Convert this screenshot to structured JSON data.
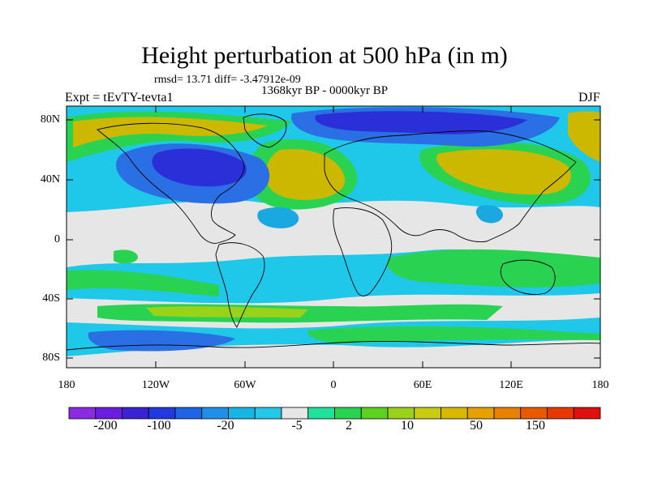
{
  "title": "Height perturbation at 500 hPa (in m)",
  "stats": "rmsd= 13.71 diff= -3.47912e-09",
  "period": "1368kyr BP - 0000kyr BP",
  "experiment": "Expt = tEvTY-tevta1",
  "season": "DJF",
  "lat_ticks": [
    "80N",
    "40N",
    "0",
    "40S",
    "80S"
  ],
  "lon_ticks": [
    "180",
    "120W",
    "60W",
    "0",
    "60E",
    "120E",
    "180"
  ],
  "colorbar": {
    "labels": [
      "-200",
      "-100",
      "-20",
      "-5",
      "2",
      "10",
      "50",
      "150"
    ],
    "colors": [
      "#8a2be2",
      "#6a1fe0",
      "#3a23d4",
      "#2239e0",
      "#1e64e6",
      "#1e90e8",
      "#17b6e2",
      "#22c8e6",
      "#e6e6e6",
      "#1ee39a",
      "#2ad252",
      "#5ad21e",
      "#9ad21a",
      "#c8cc10",
      "#d8b800",
      "#e6a000",
      "#e88000",
      "#e85a00",
      "#e63800",
      "#e01010"
    ]
  },
  "field_colors": {
    "strong_neg": "#2a2fd8",
    "mid_neg": "#2a6fe4",
    "weak_neg": "#19a8e0",
    "near_zero": "#e6e6e6",
    "weak_pos": "#2ad252",
    "light_pos": "#9ad21a",
    "mid_pos": "#cdb800",
    "base": "#1fc8e8"
  }
}
